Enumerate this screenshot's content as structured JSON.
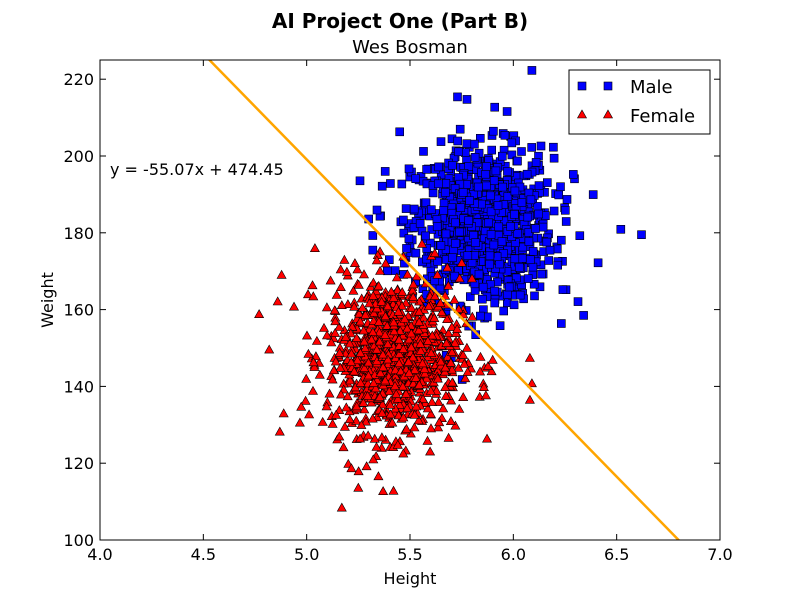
{
  "chart_data": {
    "type": "scatter",
    "title": "AI Project One (Part B)",
    "subtitle": "Wes Bosman",
    "xlabel": "Height",
    "ylabel": "Weight",
    "xlim": [
      4.0,
      7.0
    ],
    "ylim": [
      100,
      225
    ],
    "xticks": [
      4.0,
      4.5,
      5.0,
      5.5,
      6.0,
      6.5,
      7.0
    ],
    "xtick_labels": [
      "4.0",
      "4.5",
      "5.0",
      "5.5",
      "6.0",
      "6.5",
      "7.0"
    ],
    "yticks": [
      100,
      120,
      140,
      160,
      180,
      200,
      220
    ],
    "ytick_labels": [
      "100",
      "120",
      "140",
      "160",
      "180",
      "200",
      "220"
    ],
    "grid": false,
    "legend": "top-right",
    "annotation": "y = -55.07x + 474.45",
    "line": {
      "slope": -55.07,
      "intercept": 474.45,
      "color": "#ffa500"
    },
    "series": [
      {
        "name": "Male",
        "marker": "square",
        "color": "#0000ff",
        "center": [
          5.85,
          182
        ],
        "spread": [
          0.17,
          10
        ],
        "count": 1000,
        "points": [
          [
            6.62,
            179.5
          ],
          [
            6.09,
            222.3
          ],
          [
            5.73,
            215.4
          ],
          [
            5.97,
            211.6
          ],
          [
            6.34,
            158.5
          ],
          [
            5.38,
            196.0
          ],
          [
            5.45,
            206.3
          ],
          [
            6.41,
            172.2
          ],
          [
            6.29,
            195.2
          ],
          [
            5.3,
            183.6
          ],
          [
            5.32,
            179.3
          ],
          [
            5.39,
            170.1
          ],
          [
            5.32,
            175.5
          ],
          [
            5.7,
            147.5
          ],
          [
            6.52,
            180.9
          ],
          [
            5.85,
            162.7
          ],
          [
            5.91,
            212.7
          ],
          [
            6.24,
            165.2
          ],
          [
            5.84,
            158.3
          ],
          [
            5.58,
            163.9
          ]
        ]
      },
      {
        "name": "Female",
        "marker": "triangle",
        "color": "#ff0000",
        "center": [
          5.42,
          148
        ],
        "spread": [
          0.16,
          10
        ],
        "count": 1000,
        "points": [
          [
            5.17,
            108.4
          ],
          [
            5.25,
            113.6
          ],
          [
            5.37,
            112.7
          ],
          [
            4.77,
            158.8
          ],
          [
            4.87,
            128.2
          ],
          [
            5.04,
            176.0
          ],
          [
            6.08,
            147.4
          ],
          [
            6.08,
            136.5
          ],
          [
            6.09,
            140.8
          ],
          [
            5.75,
            172.2
          ],
          [
            5.9,
            146.9
          ],
          [
            4.86,
            162.1
          ],
          [
            5.29,
            119.2
          ],
          [
            5.42,
            112.8
          ],
          [
            5.8,
            168.1
          ],
          [
            5.62,
            174.7
          ]
        ]
      }
    ]
  }
}
